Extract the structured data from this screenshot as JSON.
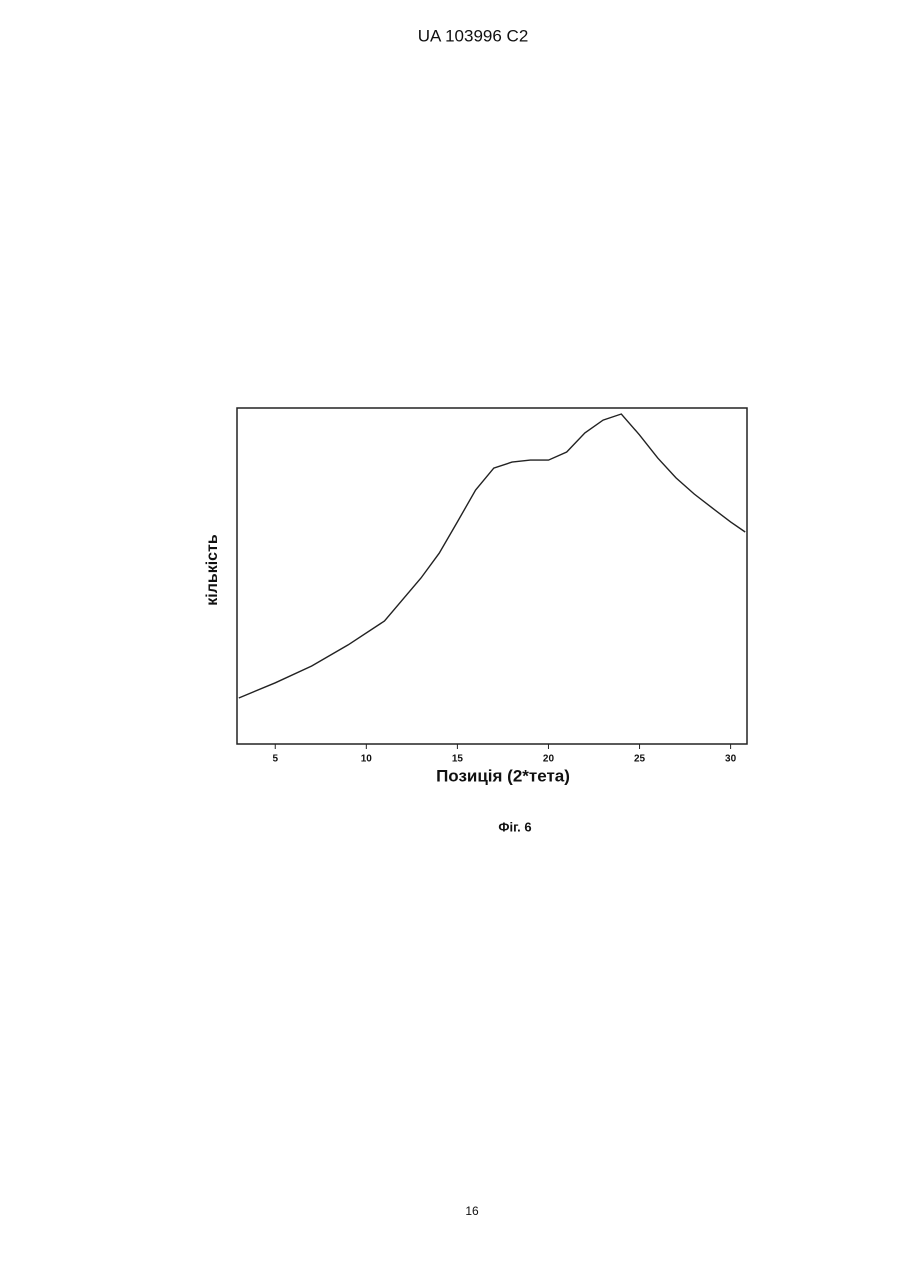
{
  "header": "UA   103996   C2",
  "chart_data": {
    "type": "line",
    "ylabel": "кількість",
    "xlabel": "Позиція (2*тета)",
    "x": [
      3,
      5,
      7,
      9,
      11,
      13,
      14,
      15,
      16,
      17,
      18,
      19,
      20,
      21,
      22,
      23,
      24,
      25,
      26,
      27,
      28,
      29,
      30,
      30.8
    ],
    "values": [
      13.7,
      18.2,
      23.2,
      29.5,
      36.6,
      49.4,
      56.8,
      66.1,
      75.6,
      82.1,
      83.9,
      84.5,
      84.5,
      86.9,
      92.6,
      96.4,
      98.2,
      92.0,
      85.1,
      79.2,
      74.4,
      70.2,
      66.1,
      63.1
    ],
    "color": "#222222",
    "xlim": [
      2.9,
      30.9
    ],
    "xticks": [
      5,
      10,
      15,
      20,
      25,
      30
    ],
    "ylim": [
      0,
      100
    ]
  },
  "caption": "Фіг. 6",
  "page_number": "16"
}
